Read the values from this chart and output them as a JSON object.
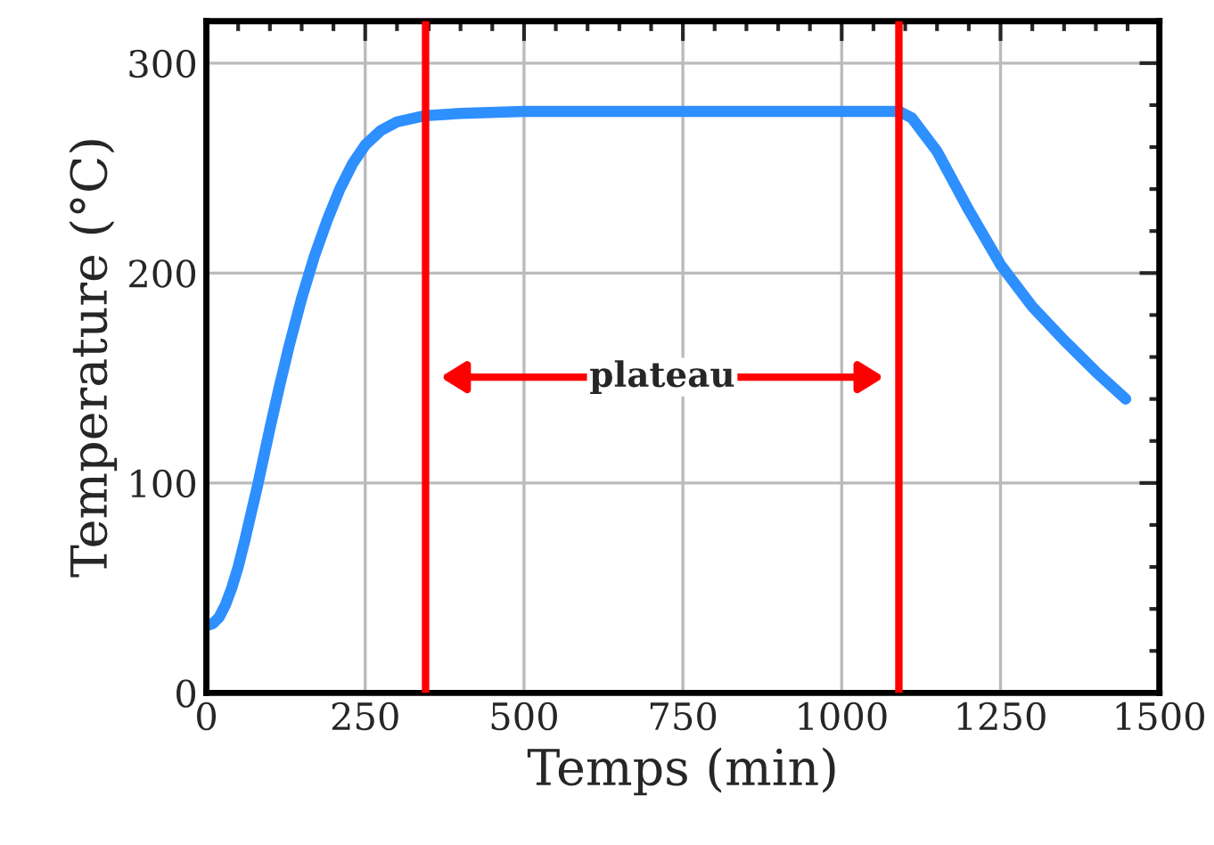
{
  "chart_data": {
    "type": "line",
    "xlabel": "Temps (min)",
    "ylabel": "Temperature (°C)",
    "x": [
      0,
      10,
      20,
      30,
      40,
      50,
      60,
      70,
      80,
      90,
      100,
      115,
      130,
      150,
      170,
      190,
      210,
      230,
      250,
      275,
      300,
      345,
      400,
      500,
      600,
      700,
      800,
      900,
      1000,
      1090,
      1110,
      1150,
      1200,
      1250,
      1300,
      1350,
      1400,
      1447
    ],
    "series": [
      {
        "color": "#2e8fff",
        "values": [
          32,
          33,
          36,
          42,
          50,
          60,
          72,
          85,
          98,
          112,
          126,
          146,
          165,
          188,
          208,
          225,
          240,
          252,
          261,
          268,
          272,
          275,
          276,
          277,
          277,
          277,
          277,
          277,
          277,
          277,
          274,
          258,
          230,
          204,
          184,
          168,
          153,
          140
        ]
      }
    ],
    "xlim": [
      0,
      1500
    ],
    "ylim": [
      0,
      320
    ],
    "xticks": [
      0,
      250,
      500,
      750,
      1000,
      1250,
      1500
    ],
    "yticks": [
      0,
      100,
      200,
      300
    ],
    "grid": true,
    "line_style": "solid",
    "marker": "none",
    "ref_lines": [
      {
        "axis": "x",
        "value": 345,
        "color": "#ff0000"
      },
      {
        "axis": "x",
        "value": 1090,
        "color": "#ff0000"
      }
    ],
    "annotations": [
      "plateau"
    ]
  }
}
